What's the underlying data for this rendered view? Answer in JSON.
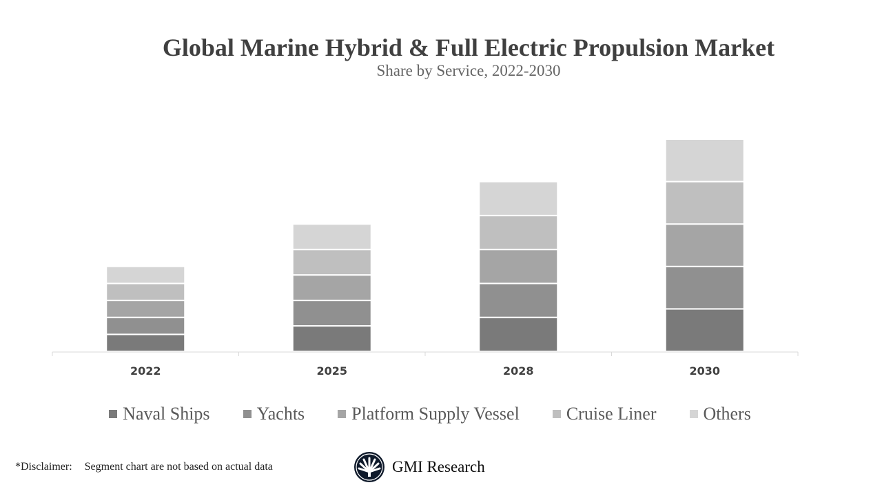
{
  "chart_data": {
    "type": "bar",
    "stacked": true,
    "title": "Global Marine Hybrid & Full Electric Propulsion Market",
    "subtitle": "Share by Service, 2022-2030",
    "categories": [
      "2022",
      "2025",
      "2028",
      "2030"
    ],
    "series": [
      {
        "name": "Naval Ships",
        "color": "#7a7a7a",
        "values": [
          2,
          3,
          4,
          5
        ]
      },
      {
        "name": "Yachts",
        "color": "#909090",
        "values": [
          2,
          3,
          4,
          5
        ]
      },
      {
        "name": "Platform Supply Vessel",
        "color": "#a5a5a5",
        "values": [
          2,
          3,
          4,
          5
        ]
      },
      {
        "name": "Cruise Liner",
        "color": "#bfbfbf",
        "values": [
          2,
          3,
          4,
          5
        ]
      },
      {
        "name": "Others",
        "color": "#d5d5d5",
        "values": [
          2,
          3,
          4,
          5
        ]
      }
    ],
    "ylim": [
      0,
      25
    ],
    "y_axis_shown": false,
    "grid": false,
    "legend_placement": "bottom"
  },
  "footer": {
    "disclaimer_label": "*Disclaimer:",
    "disclaimer_text": "Segment chart are not based on actual data",
    "brand": "GMI Research"
  }
}
